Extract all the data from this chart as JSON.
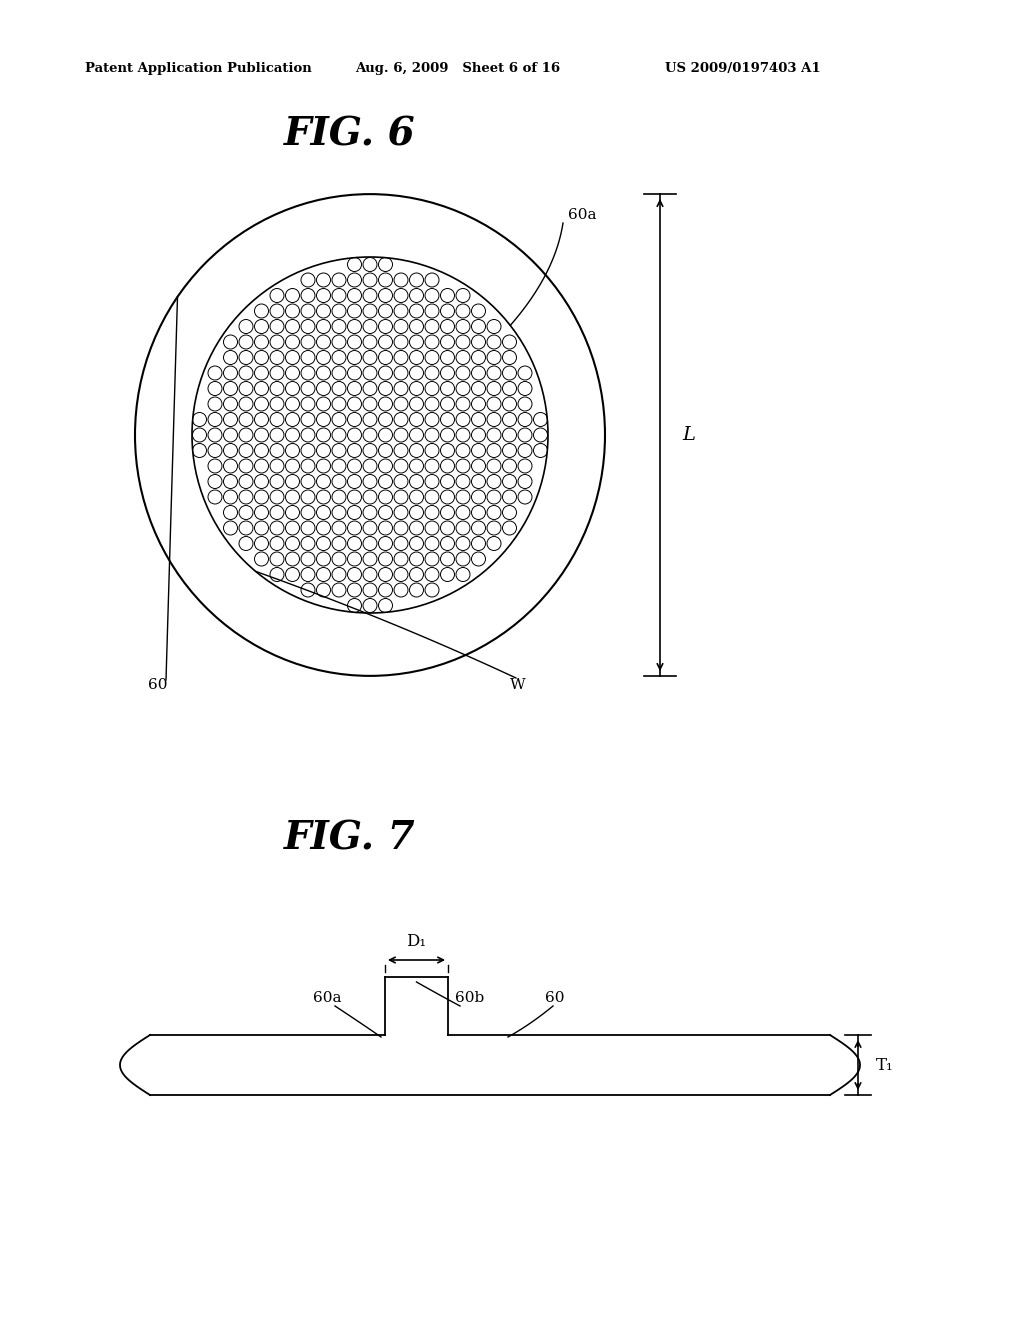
{
  "header_left": "Patent Application Publication",
  "header_mid": "Aug. 6, 2009   Sheet 6 of 16",
  "header_right": "US 2009/0197403 A1",
  "fig6_title": "FIG. 6",
  "fig7_title": "FIG. 7",
  "fig6_label_60a": "60a",
  "fig6_label_60": "60",
  "fig6_label_W": "W",
  "fig6_label_L": "L",
  "fig7_label_D1": "D₁",
  "fig7_label_60a": "60a",
  "fig7_label_60b": "60b",
  "fig7_label_60": "60",
  "fig7_label_T1": "T₁",
  "bg_color": "#ffffff",
  "line_color": "#000000"
}
